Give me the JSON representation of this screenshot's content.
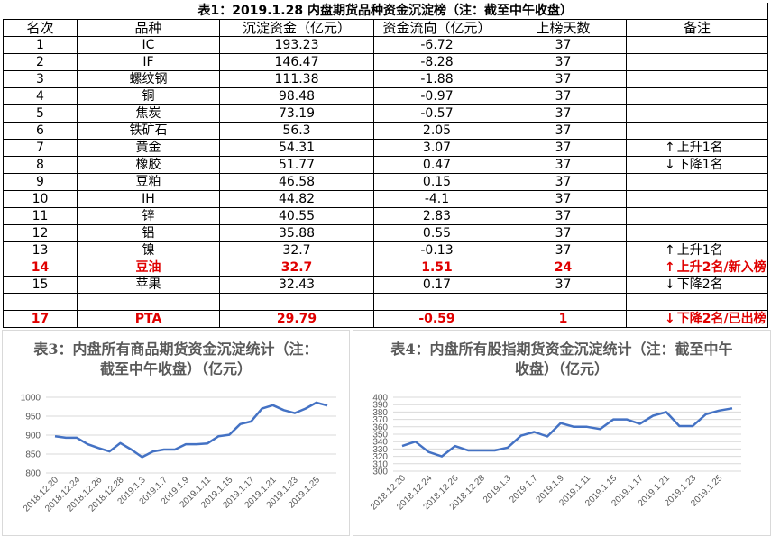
{
  "table": {
    "title": "表1：2019.1.28 内盘期货品种资金沉淀榜（注：截至中午收盘）",
    "headers": [
      "名次",
      "品种",
      "沉淀资金（亿元）",
      "资金流向（亿元）",
      "上榜天数",
      "备注"
    ],
    "rows": [
      {
        "rank": "1",
        "name": "IC",
        "fund": "193.23",
        "flow": "-6.72",
        "days": "37",
        "note": "",
        "dir": "",
        "red": false
      },
      {
        "rank": "2",
        "name": "IF",
        "fund": "146.47",
        "flow": "-8.28",
        "days": "37",
        "note": "",
        "dir": "",
        "red": false
      },
      {
        "rank": "3",
        "name": "螺纹钢",
        "fund": "111.38",
        "flow": "-1.88",
        "days": "37",
        "note": "",
        "dir": "",
        "red": false
      },
      {
        "rank": "4",
        "name": "铜",
        "fund": "98.48",
        "flow": "-0.97",
        "days": "37",
        "note": "",
        "dir": "",
        "red": false
      },
      {
        "rank": "5",
        "name": "焦炭",
        "fund": "73.19",
        "flow": "-0.57",
        "days": "37",
        "note": "",
        "dir": "",
        "red": false
      },
      {
        "rank": "6",
        "name": "铁矿石",
        "fund": "56.3",
        "flow": "2.05",
        "days": "37",
        "note": "",
        "dir": "",
        "red": false
      },
      {
        "rank": "7",
        "name": "黄金",
        "fund": "54.31",
        "flow": "3.07",
        "days": "37",
        "note": "上升1名",
        "dir": "up",
        "red": false
      },
      {
        "rank": "8",
        "name": "橡胶",
        "fund": "51.77",
        "flow": "0.47",
        "days": "37",
        "note": "下降1名",
        "dir": "down",
        "red": false
      },
      {
        "rank": "9",
        "name": "豆粕",
        "fund": "46.58",
        "flow": "0.15",
        "days": "37",
        "note": "",
        "dir": "",
        "red": false
      },
      {
        "rank": "10",
        "name": "IH",
        "fund": "44.82",
        "flow": "-4.1",
        "days": "37",
        "note": "",
        "dir": "",
        "red": false
      },
      {
        "rank": "11",
        "name": "锌",
        "fund": "40.55",
        "flow": "2.83",
        "days": "37",
        "note": "",
        "dir": "",
        "red": false
      },
      {
        "rank": "12",
        "name": "铝",
        "fund": "35.88",
        "flow": "0.55",
        "days": "37",
        "note": "",
        "dir": "",
        "red": false
      },
      {
        "rank": "13",
        "name": "镍",
        "fund": "32.7",
        "flow": "-0.13",
        "days": "37",
        "note": "上升1名",
        "dir": "up",
        "red": false
      },
      {
        "rank": "14",
        "name": "豆油",
        "fund": "32.7",
        "flow": "1.51",
        "days": "24",
        "note": "上升2名/新入榜",
        "dir": "up",
        "red": true
      },
      {
        "rank": "15",
        "name": "苹果",
        "fund": "32.43",
        "flow": "0.17",
        "days": "37",
        "note": "下降2名",
        "dir": "down",
        "red": false
      },
      {
        "rank": "",
        "name": "",
        "fund": "",
        "flow": "",
        "days": "",
        "note": "",
        "dir": "",
        "red": false
      },
      {
        "rank": "17",
        "name": "PTA",
        "fund": "29.79",
        "flow": "-0.59",
        "days": "1",
        "note": "下降2名/已出榜",
        "dir": "down",
        "red": true
      }
    ]
  },
  "colors": {
    "line": "#4472c4",
    "grid": "#d9d9d9",
    "highlight": "#e00000"
  },
  "chart_data": [
    {
      "type": "line",
      "title": "表3：内盘所有商品期货资金沉淀统计（注：截至中午收盘）（亿元）",
      "x": [
        "2018.12.20",
        "2018.12.21",
        "2018.12.24",
        "2018.12.25",
        "2018.12.26",
        "2018.12.27",
        "2018.12.28",
        "2019.1.2",
        "2019.1.3",
        "2019.1.4",
        "2019.1.7",
        "2019.1.8",
        "2019.1.9",
        "2019.1.10",
        "2019.1.11",
        "2019.1.14",
        "2019.1.15",
        "2019.1.16",
        "2019.1.17",
        "2019.1.18",
        "2019.1.21",
        "2019.1.22",
        "2019.1.23",
        "2019.1.24",
        "2019.1.25",
        "2019.1.28"
      ],
      "xticks": [
        "2018.12.20",
        "2018.12.24",
        "2018.12.26",
        "2018.12.28",
        "2019.1.3",
        "2019.1.7",
        "2019.1.9",
        "2019.1.11",
        "2019.1.15",
        "2019.1.17",
        "2019.1.21",
        "2019.1.23",
        "2019.1.25"
      ],
      "values": [
        897,
        893,
        893,
        876,
        866,
        857,
        879,
        862,
        842,
        857,
        862,
        862,
        876,
        876,
        878,
        897,
        901,
        929,
        936,
        970,
        979,
        966,
        958,
        970,
        986,
        978
      ],
      "ylim": [
        800,
        1000
      ],
      "yticks": [
        800,
        850,
        900,
        950,
        1000
      ],
      "grid": true
    },
    {
      "type": "line",
      "title": "表4：内盘所有股指期货资金沉淀统计（注：截至中午收盘）（亿元）",
      "x": [
        "2018.12.20",
        "2018.12.21",
        "2018.12.24",
        "2018.12.25",
        "2018.12.26",
        "2018.12.27",
        "2018.12.28",
        "2019.1.2",
        "2019.1.3",
        "2019.1.4",
        "2019.1.7",
        "2019.1.8",
        "2019.1.9",
        "2019.1.10",
        "2019.1.11",
        "2019.1.14",
        "2019.1.15",
        "2019.1.16",
        "2019.1.17",
        "2019.1.18",
        "2019.1.21",
        "2019.1.22",
        "2019.1.23",
        "2019.1.24",
        "2019.1.25",
        "2019.1.28"
      ],
      "xticks": [
        "2018.12.20",
        "2018.12.24",
        "2018.12.26",
        "2018.12.28",
        "2019.1.3",
        "2019.1.7",
        "2019.1.9",
        "2019.1.11",
        "2019.1.15",
        "2019.1.17",
        "2019.1.21",
        "2019.1.23",
        "2019.1.25"
      ],
      "values": [
        334,
        340,
        326,
        320,
        334,
        328,
        328,
        328,
        332,
        348,
        353,
        347,
        365,
        360,
        360,
        357,
        370,
        370,
        364,
        375,
        380,
        361,
        361,
        377,
        382,
        385
      ],
      "ylim": [
        300,
        400
      ],
      "yticks": [
        300,
        310,
        320,
        330,
        340,
        350,
        360,
        370,
        380,
        390,
        400
      ],
      "grid": true
    }
  ]
}
